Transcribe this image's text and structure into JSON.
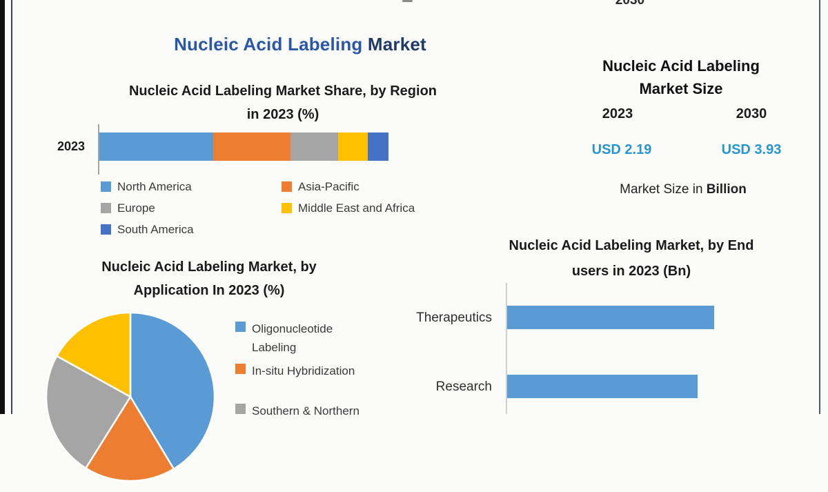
{
  "page": {
    "background": "#fbfbf9",
    "top_year_fragment": "2030"
  },
  "main_title": {
    "part1": "Nucleic Acid Labeling ",
    "part2": "Market",
    "part1_color": "#2A57A7",
    "part2_color": "#1F3968"
  },
  "region_chart": {
    "title_line1": "Nucleic Acid Labeling Market Share, by Region",
    "title_line2": "in 2023 (%)",
    "axis_label": "2023",
    "legend": [
      {
        "label": "North America",
        "color": "#5B9BD5"
      },
      {
        "label": "Asia-Pacific",
        "color": "#ED7D31"
      },
      {
        "label": "Europe",
        "color": "#A5A5A5"
      },
      {
        "label": "Middle East and Africa",
        "color": "#FFC000"
      },
      {
        "label": "South America",
        "color": "#4472C4"
      }
    ],
    "values_pct": [
      39.4,
      26.8,
      16.3,
      10.3,
      7.2
    ]
  },
  "market_size_panel": {
    "title_line1": "Nucleic Acid Labeling",
    "title_line2": "Market Size",
    "year_left": "2023",
    "year_right": "2030",
    "value_left": "USD 2.19",
    "value_right": "USD 3.93",
    "value_color": "#2696D3",
    "caption_prefix": "Market Size in ",
    "caption_bold": "Billion"
  },
  "application_chart": {
    "title_line1": "Nucleic Acid Labeling Market, by",
    "title_line2": "Application In 2023 (%)",
    "legend": [
      {
        "label": "Oligonucleotide Labeling",
        "color": "#5B9BD5"
      },
      {
        "label": "In-situ Hybridization",
        "color": "#ED7D31"
      },
      {
        "label": "Southern & Northern",
        "color": "#A5A5A5"
      }
    ],
    "slices": [
      {
        "label": "Oligonucleotide Labeling",
        "color": "#5B9BD5",
        "start_deg": 0,
        "end_deg": 149
      },
      {
        "label": "In-situ Hybridization",
        "color": "#ED7D31",
        "start_deg": 149,
        "end_deg": 212
      },
      {
        "label": "Southern & Northern",
        "color": "#A5A5A5",
        "start_deg": 212,
        "end_deg": 299
      },
      {
        "label": "",
        "color": "#FFC000",
        "start_deg": 299,
        "end_deg": 360
      }
    ]
  },
  "end_users_chart": {
    "title_line1": "Nucleic Acid Labeling Market, by End",
    "title_line2": "users in 2023 (Bn)",
    "bar_color": "#5B9BD5",
    "bars": [
      {
        "label": "Therapeutics",
        "relative_pct": 100
      },
      {
        "label": "Research",
        "relative_pct": 92
      }
    ]
  },
  "chart_data": [
    {
      "type": "bar",
      "subtype": "stacked-horizontal",
      "title": "Nucleic Acid Labeling Market Share, by Region in 2023 (%)",
      "categories": [
        "2023"
      ],
      "series": [
        {
          "name": "North America",
          "values": [
            39.4
          ]
        },
        {
          "name": "Asia-Pacific",
          "values": [
            26.8
          ]
        },
        {
          "name": "Europe",
          "values": [
            16.3
          ]
        },
        {
          "name": "Middle East and Africa",
          "values": [
            10.3
          ]
        },
        {
          "name": "South America",
          "values": [
            7.2
          ]
        }
      ],
      "unit": "%",
      "legend_position": "bottom",
      "note": "percentages estimated from segment widths; no data labels shown"
    },
    {
      "type": "pie",
      "title": "Nucleic Acid Labeling Market, by Application In 2023 (%)",
      "labels": [
        "Oligonucleotide Labeling",
        "In-situ Hybridization",
        "Southern & Northern",
        ""
      ],
      "values": [
        41,
        18,
        24,
        17
      ],
      "unit": "%",
      "legend_position": "right",
      "note": "values estimated from slice angles; pie bottom and fourth legend entry are cut off by image edge"
    },
    {
      "type": "bar",
      "subtype": "horizontal",
      "title": "Nucleic Acid Labeling Market, by End users in 2023 (Bn)",
      "categories": [
        "Therapeutics",
        "Research"
      ],
      "values": [
        1.0,
        0.92
      ],
      "unit": "relative",
      "note": "no axis scale or data labels visible; values relative to longest bar"
    }
  ]
}
